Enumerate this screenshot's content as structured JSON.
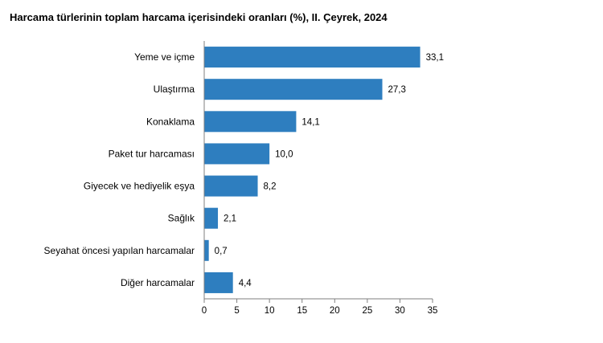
{
  "chart_data": {
    "type": "bar",
    "orientation": "horizontal",
    "title": "Harcama türlerinin toplam harcama içerisindeki oranları (%), II. Çeyrek, 2024",
    "xlabel": "",
    "ylabel": "",
    "categories": [
      "Yeme ve içme",
      "Ulaştırma",
      "Konaklama",
      "Paket tur harcaması",
      "Giyecek ve hediyelik eşya",
      "Sağlık",
      "Seyahat öncesi yapılan harcamalar",
      "Diğer harcamalar"
    ],
    "values": [
      33.1,
      27.3,
      14.1,
      10.0,
      8.2,
      2.1,
      0.7,
      4.4
    ],
    "value_labels": [
      "33,1",
      "27,3",
      "14,1",
      "10,0",
      "8,2",
      "2,1",
      "0,7",
      "4,4"
    ],
    "xlim": [
      0,
      35
    ],
    "xticks": [
      0,
      5,
      10,
      15,
      20,
      25,
      30,
      35
    ],
    "xtick_labels": [
      "0",
      "5",
      "10",
      "15",
      "20",
      "25",
      "30",
      "35"
    ],
    "grid": false,
    "legend": "none",
    "colors": {
      "bar": "#2e7ebf",
      "axis": "#7f7f7f"
    }
  }
}
